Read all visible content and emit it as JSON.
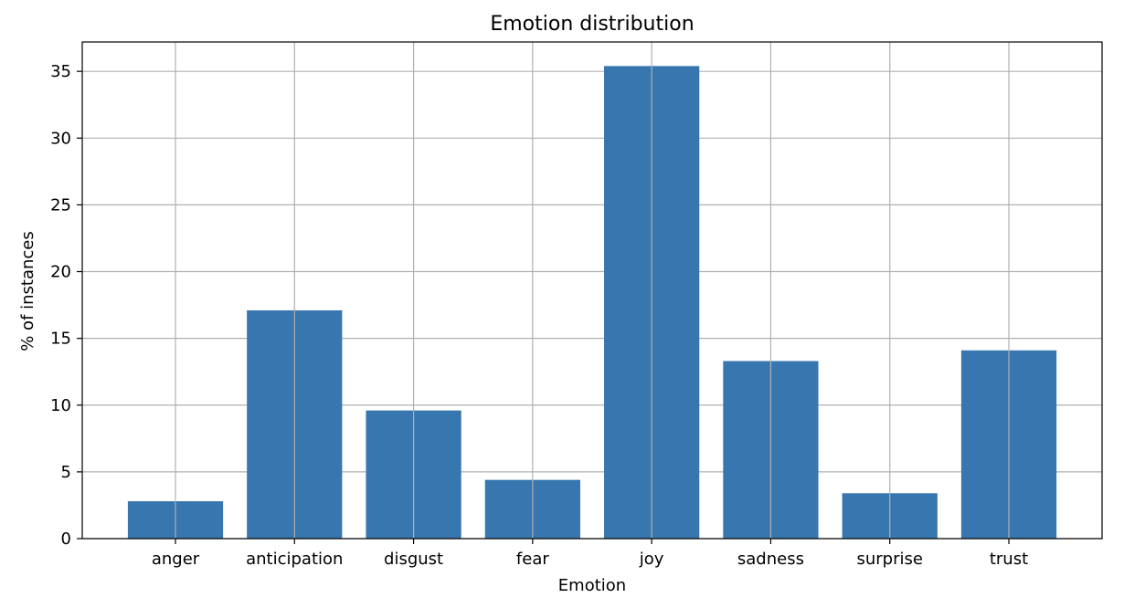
{
  "chart_data": {
    "type": "bar",
    "title": "Emotion distribution",
    "xlabel": "Emotion",
    "ylabel": "% of instances",
    "categories": [
      "anger",
      "anticipation",
      "disgust",
      "fear",
      "joy",
      "sadness",
      "surprise",
      "trust"
    ],
    "values": [
      2.8,
      17.1,
      9.6,
      4.4,
      35.4,
      13.3,
      3.4,
      14.1
    ],
    "ylim": [
      0,
      37.2
    ],
    "yticks": [
      0,
      5,
      10,
      15,
      20,
      25,
      30,
      35
    ],
    "grid": true,
    "bar_color": "#3776ae"
  }
}
